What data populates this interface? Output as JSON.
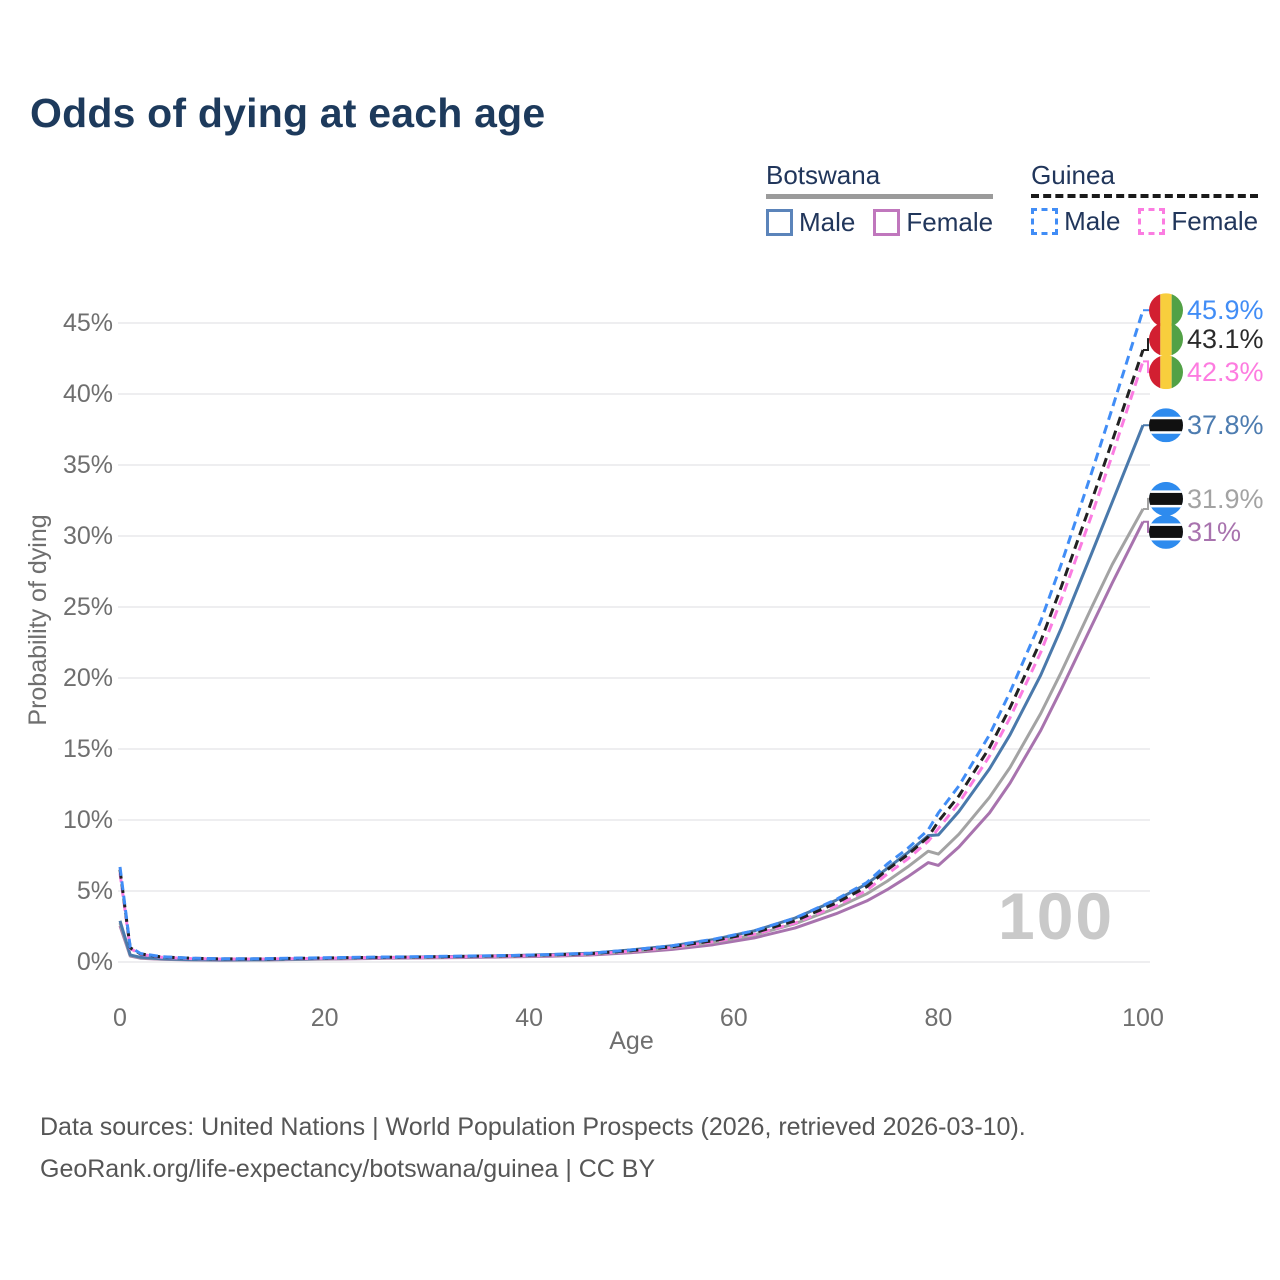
{
  "title": "Odds of dying at each age",
  "legend": {
    "groups": [
      {
        "id": "botswana",
        "title": "Botswana",
        "line_style": "solid",
        "line_color": "#9b9b9b",
        "items": [
          {
            "id": "botswana-male",
            "label": "Male",
            "color": "#5b84ba",
            "style": "solid"
          },
          {
            "id": "botswana-female",
            "label": "Female",
            "color": "#c077bd",
            "style": "solid"
          }
        ]
      },
      {
        "id": "guinea",
        "title": "Guinea",
        "line_style": "dashed",
        "line_color": "#1a1a1a",
        "items": [
          {
            "id": "guinea-male",
            "label": "Male",
            "color": "#418df6",
            "style": "dashed"
          },
          {
            "id": "guinea-female",
            "label": "Female",
            "color": "#fb7ce1",
            "style": "dashed"
          }
        ]
      }
    ]
  },
  "watermark": "100",
  "footer": {
    "line1": "Data sources: United Nations | World Population Prospects (2026, retrieved 2026-03-10).",
    "line2": "GeoRank.org/life-expectancy/botswana/guinea | CC BY"
  },
  "flag_colors": {
    "guinea": {
      "red": "#d21f31",
      "yellow": "#f8ce3d",
      "green": "#52a146"
    },
    "botswana": {
      "blue": "#2e8bee",
      "black": "#111111",
      "white": "#ffffff"
    }
  },
  "chart_data": {
    "type": "line",
    "title": "Odds of dying at each age",
    "xlabel": "Age",
    "ylabel": "Probability of dying",
    "xlim": [
      0,
      100
    ],
    "ylim": [
      0,
      46.5
    ],
    "xticks": [
      0,
      20,
      40,
      60,
      80,
      100
    ],
    "yticks": [
      0,
      5,
      10,
      15,
      20,
      25,
      30,
      35,
      40,
      45
    ],
    "ytick_suffix": "%",
    "grid": true,
    "legend_position": "top-right",
    "x": [
      0,
      1,
      2,
      4,
      7,
      10,
      14,
      18,
      22,
      26,
      30,
      34,
      38,
      42,
      46,
      50,
      54,
      58,
      62,
      66,
      70,
      73,
      75,
      77,
      79,
      80,
      82,
      85,
      87,
      90,
      92,
      95,
      97,
      100
    ],
    "series": [
      {
        "id": "guinea-male",
        "name": "Guinea Male",
        "color": "#418df6",
        "dash": true,
        "end_label": {
          "text": "45.9%",
          "color": "#418df6",
          "flag": "guinea"
        },
        "values": [
          6.7,
          1.05,
          0.6,
          0.38,
          0.27,
          0.23,
          0.23,
          0.28,
          0.32,
          0.35,
          0.38,
          0.42,
          0.46,
          0.52,
          0.62,
          0.85,
          1.15,
          1.6,
          2.2,
          3.1,
          4.4,
          5.6,
          6.9,
          8.0,
          9.3,
          10.5,
          12.4,
          16.0,
          19.0,
          24.0,
          28.0,
          34.5,
          39.0,
          45.9
        ]
      },
      {
        "id": "guinea-all",
        "name": "Guinea",
        "color": "#222222",
        "dash": true,
        "end_label": {
          "text": "43.1%",
          "color": "#2a2a2a",
          "flag": "guinea"
        },
        "values": [
          6.5,
          1.0,
          0.57,
          0.36,
          0.26,
          0.22,
          0.22,
          0.27,
          0.3,
          0.33,
          0.36,
          0.4,
          0.44,
          0.5,
          0.59,
          0.8,
          1.08,
          1.5,
          2.06,
          2.9,
          4.15,
          5.3,
          6.5,
          7.55,
          8.8,
          9.9,
          11.7,
          15.1,
          17.9,
          22.6,
          26.4,
          32.5,
          36.7,
          43.1
        ]
      },
      {
        "id": "guinea-female",
        "name": "Guinea Female",
        "color": "#fb7ce1",
        "dash": true,
        "end_label": {
          "text": "42.3%",
          "color": "#fd7ce0",
          "flag": "guinea"
        },
        "values": [
          6.25,
          0.95,
          0.54,
          0.34,
          0.24,
          0.21,
          0.21,
          0.25,
          0.28,
          0.31,
          0.34,
          0.38,
          0.42,
          0.47,
          0.56,
          0.76,
          1.02,
          1.42,
          1.95,
          2.75,
          3.95,
          5.05,
          6.2,
          7.25,
          8.5,
          9.4,
          11.2,
          14.5,
          17.2,
          21.8,
          25.5,
          31.5,
          35.7,
          42.3
        ]
      },
      {
        "id": "botswana-male",
        "name": "Botswana Male",
        "color": "#4a79ab",
        "dash": false,
        "end_label": {
          "text": "37.8%",
          "color": "#4d7cb0",
          "flag": "botswana"
        },
        "values": [
          2.9,
          0.5,
          0.33,
          0.23,
          0.17,
          0.15,
          0.16,
          0.22,
          0.28,
          0.32,
          0.36,
          0.4,
          0.45,
          0.52,
          0.62,
          0.85,
          1.15,
          1.58,
          2.2,
          3.1,
          4.35,
          5.5,
          6.6,
          7.7,
          8.9,
          8.95,
          10.6,
          13.6,
          16.0,
          20.2,
          23.5,
          28.8,
          32.4,
          37.8
        ]
      },
      {
        "id": "botswana-all",
        "name": "Botswana",
        "color": "#a3a3a3",
        "dash": false,
        "end_label": {
          "text": "31.9%",
          "color": "#a3a3a3",
          "flag": "botswana"
        },
        "values": [
          2.75,
          0.46,
          0.3,
          0.21,
          0.16,
          0.14,
          0.15,
          0.2,
          0.25,
          0.29,
          0.32,
          0.36,
          0.4,
          0.46,
          0.55,
          0.74,
          1.0,
          1.38,
          1.9,
          2.7,
          3.8,
          4.8,
          5.7,
          6.7,
          7.8,
          7.6,
          9.0,
          11.6,
          13.7,
          17.5,
          20.4,
          25.0,
          28.0,
          31.9
        ]
      },
      {
        "id": "botswana-female",
        "name": "Botswana Female",
        "color": "#a873ae",
        "dash": false,
        "end_label": {
          "text": "31%",
          "color": "#a873ae",
          "flag": "botswana"
        },
        "values": [
          2.55,
          0.42,
          0.27,
          0.19,
          0.14,
          0.13,
          0.14,
          0.18,
          0.22,
          0.26,
          0.29,
          0.32,
          0.36,
          0.41,
          0.49,
          0.66,
          0.89,
          1.22,
          1.7,
          2.4,
          3.4,
          4.3,
          5.1,
          6.0,
          7.0,
          6.8,
          8.1,
          10.5,
          12.6,
          16.3,
          19.2,
          23.7,
          26.7,
          31.0
        ]
      }
    ]
  }
}
